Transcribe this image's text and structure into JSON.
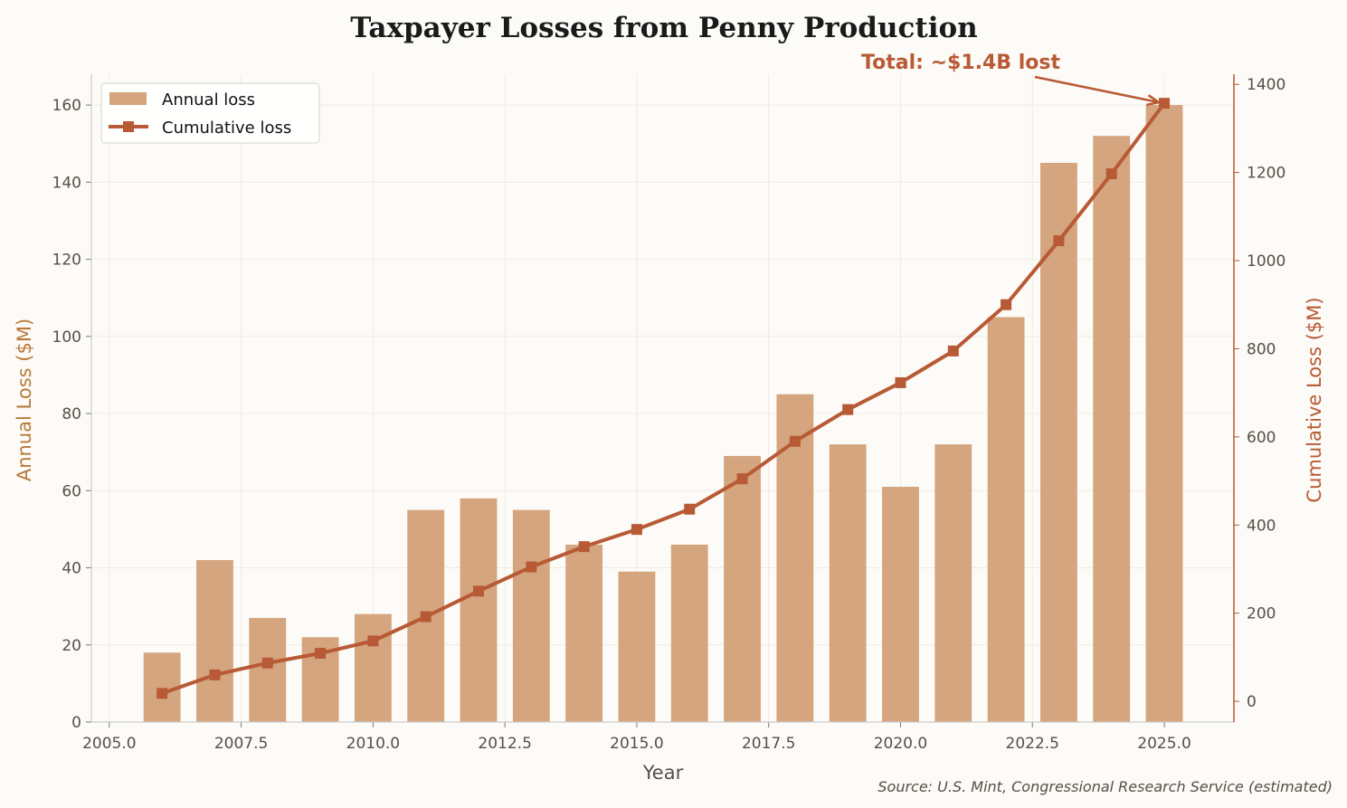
{
  "chart_data": {
    "type": "bar+line",
    "title": "Taxpayer Losses from Penny Production",
    "xlabel": "Year",
    "ylabel": "Annual Loss ($M)",
    "y2label": "Cumulative Loss ($M)",
    "x": [
      2006,
      2007,
      2008,
      2009,
      2010,
      2011,
      2012,
      2013,
      2014,
      2015,
      2016,
      2017,
      2018,
      2019,
      2020,
      2021,
      2022,
      2023,
      2024,
      2025
    ],
    "series": [
      {
        "name": "Annual loss",
        "type": "bar",
        "axis": "left",
        "color": "#d4a57e",
        "values": [
          18,
          42,
          27,
          22,
          28,
          55,
          58,
          55,
          46,
          39,
          46,
          69,
          85,
          72,
          61,
          72,
          105,
          145,
          152,
          160
        ]
      },
      {
        "name": "Cumulative loss",
        "type": "line",
        "axis": "right",
        "marker": "square",
        "color": "#b85a35",
        "values": [
          18,
          60,
          87,
          109,
          137,
          192,
          250,
          305,
          351,
          390,
          436,
          505,
          590,
          662,
          723,
          795,
          900,
          1045,
          1197,
          1357
        ]
      }
    ],
    "xlim": [
      2004.66,
      2026.32
    ],
    "ylim": [
      0,
      168
    ],
    "y2lim": [
      -47,
      1423
    ],
    "xticks": [
      "2005.0",
      "2007.5",
      "2010.0",
      "2012.5",
      "2015.0",
      "2017.5",
      "2020.0",
      "2022.5",
      "2025.0"
    ],
    "yticks": [
      "0",
      "20",
      "40",
      "60",
      "80",
      "100",
      "120",
      "140",
      "160"
    ],
    "y2ticks": [
      "0",
      "200",
      "400",
      "600",
      "800",
      "1000",
      "1200",
      "1400"
    ],
    "grid": true,
    "legend_position": "top-left",
    "annotation": {
      "text": "Total: ~$1.4B lost",
      "target_x": 2025,
      "target_y": 1357
    },
    "source": "Source: U.S. Mint, Congressional Research Service (estimated)",
    "colors": {
      "background": "#fcfbf7",
      "left_axis_label": "#b87a3c",
      "right_axis": "#b85a35",
      "grid": "#eeebe4"
    }
  }
}
